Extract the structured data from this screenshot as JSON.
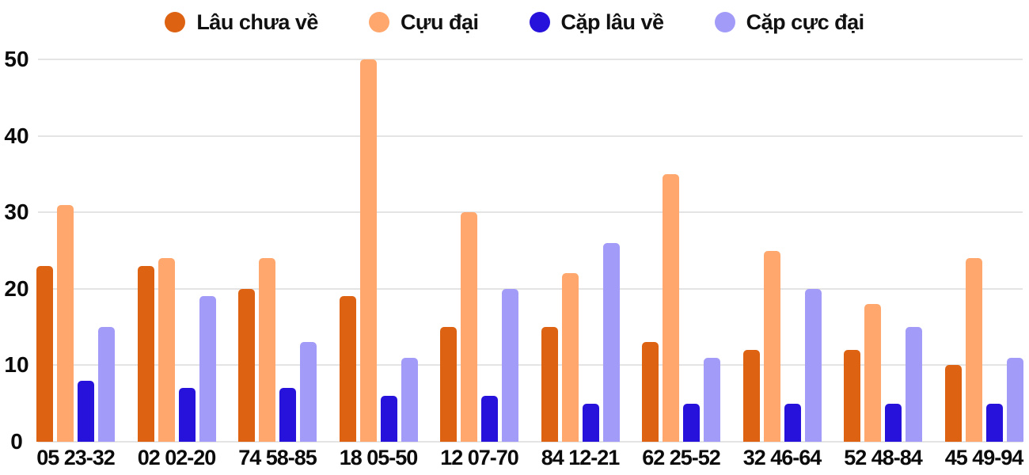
{
  "chart_data": {
    "type": "bar",
    "title": "",
    "xlabel": "",
    "ylabel": "",
    "categories": [
      "05 23-32",
      "02 02-20",
      "74 58-85",
      "18 05-50",
      "12 07-70",
      "84 12-21",
      "62 25-52",
      "32 46-64",
      "52 48-84",
      "45 49-94"
    ],
    "series": [
      {
        "name": "Lâu chưa về",
        "color": "#dd6312",
        "values": [
          23,
          23,
          20,
          19,
          15,
          15,
          13,
          12,
          12,
          10
        ]
      },
      {
        "name": "Cựu đại",
        "color": "#ffa76c",
        "values": [
          31,
          24,
          24,
          50,
          30,
          22,
          35,
          25,
          18,
          24
        ]
      },
      {
        "name": "Cặp lâu về",
        "color": "#2712db",
        "values": [
          8,
          7,
          7,
          6,
          6,
          5,
          5,
          5,
          5,
          5
        ]
      },
      {
        "name": "Cặp cực đại",
        "color": "#a29bf8",
        "values": [
          15,
          19,
          13,
          11,
          20,
          26,
          11,
          20,
          15,
          11
        ]
      }
    ],
    "ylim": [
      0,
      50
    ],
    "yticks": [
      0,
      10,
      20,
      30,
      40,
      50
    ],
    "grid": true,
    "legend_position": "top"
  },
  "colors": {
    "background": "#ffffff",
    "gridline": "#e4e4e4",
    "text": "#0b0b0b"
  }
}
